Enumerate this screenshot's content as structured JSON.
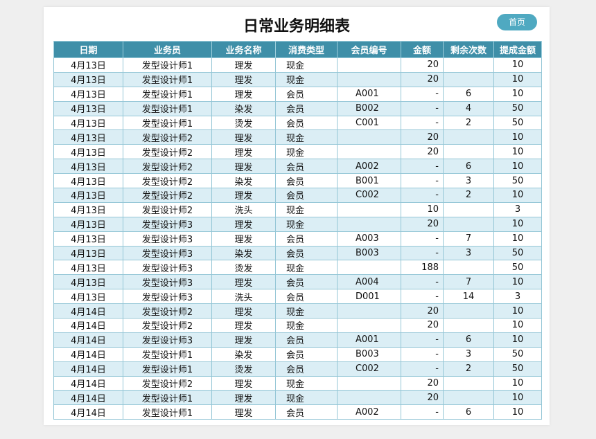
{
  "header": {
    "title": "日常业务明细表",
    "home_button": "首页"
  },
  "table": {
    "columns": [
      "日期",
      "业务员",
      "业务名称",
      "消费类型",
      "会员编号",
      "金额",
      "剩余次数",
      "提成金额"
    ],
    "rows": [
      [
        "4月13日",
        "发型设计师1",
        "理发",
        "现金",
        null,
        20,
        null,
        10
      ],
      [
        "4月13日",
        "发型设计师1",
        "理发",
        "现金",
        null,
        20,
        null,
        10
      ],
      [
        "4月13日",
        "发型设计师1",
        "理发",
        "会员",
        "A001",
        "-",
        6,
        10
      ],
      [
        "4月13日",
        "发型设计师1",
        "染发",
        "会员",
        "B002",
        "-",
        4,
        50
      ],
      [
        "4月13日",
        "发型设计师1",
        "烫发",
        "会员",
        "C001",
        "-",
        2,
        50
      ],
      [
        "4月13日",
        "发型设计师2",
        "理发",
        "现金",
        null,
        20,
        null,
        10
      ],
      [
        "4月13日",
        "发型设计师2",
        "理发",
        "现金",
        null,
        20,
        null,
        10
      ],
      [
        "4月13日",
        "发型设计师2",
        "理发",
        "会员",
        "A002",
        "-",
        6,
        10
      ],
      [
        "4月13日",
        "发型设计师2",
        "染发",
        "会员",
        "B001",
        "-",
        3,
        50
      ],
      [
        "4月13日",
        "发型设计师2",
        "理发",
        "会员",
        "C002",
        "-",
        2,
        10
      ],
      [
        "4月13日",
        "发型设计师2",
        "洗头",
        "现金",
        null,
        10,
        null,
        3
      ],
      [
        "4月13日",
        "发型设计师3",
        "理发",
        "现金",
        null,
        20,
        null,
        10
      ],
      [
        "4月13日",
        "发型设计师3",
        "理发",
        "会员",
        "A003",
        "-",
        7,
        10
      ],
      [
        "4月13日",
        "发型设计师3",
        "染发",
        "会员",
        "B003",
        "-",
        3,
        50
      ],
      [
        "4月13日",
        "发型设计师3",
        "烫发",
        "现金",
        null,
        188,
        null,
        50
      ],
      [
        "4月13日",
        "发型设计师3",
        "理发",
        "会员",
        "A004",
        "-",
        7,
        10
      ],
      [
        "4月13日",
        "发型设计师3",
        "洗头",
        "会员",
        "D001",
        "-",
        14,
        3
      ],
      [
        "4月14日",
        "发型设计师2",
        "理发",
        "现金",
        null,
        20,
        null,
        10
      ],
      [
        "4月14日",
        "发型设计师2",
        "理发",
        "现金",
        null,
        20,
        null,
        10
      ],
      [
        "4月14日",
        "发型设计师3",
        "理发",
        "会员",
        "A001",
        "-",
        6,
        10
      ],
      [
        "4月14日",
        "发型设计师1",
        "染发",
        "会员",
        "B003",
        "-",
        3,
        50
      ],
      [
        "4月14日",
        "发型设计师1",
        "烫发",
        "会员",
        "C002",
        "-",
        2,
        50
      ],
      [
        "4月14日",
        "发型设计师2",
        "理发",
        "现金",
        null,
        20,
        null,
        10
      ],
      [
        "4月14日",
        "发型设计师1",
        "理发",
        "现金",
        null,
        20,
        null,
        10
      ],
      [
        "4月14日",
        "发型设计师1",
        "理发",
        "会员",
        "A002",
        "-",
        6,
        10
      ]
    ]
  }
}
